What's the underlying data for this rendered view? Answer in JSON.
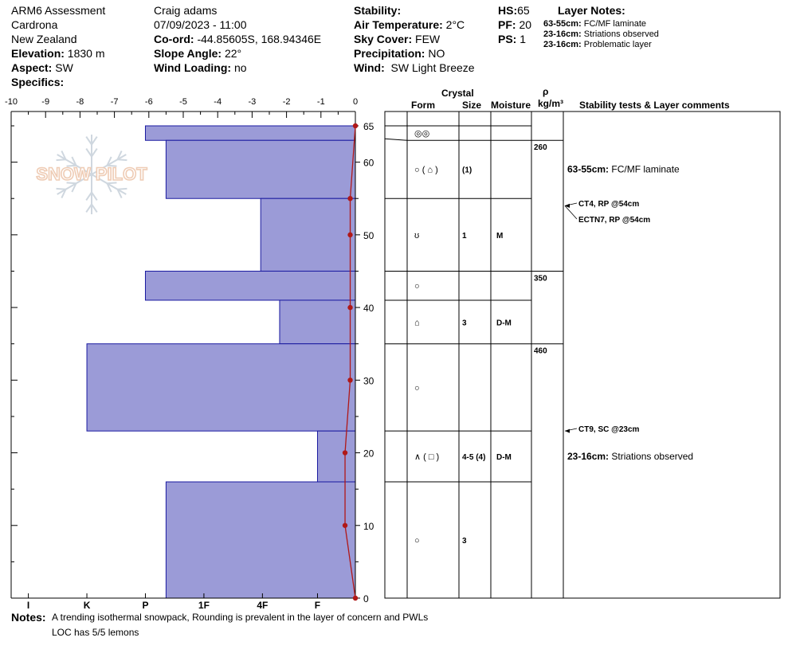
{
  "header": {
    "title": "ARM6 Assessment",
    "location": "Cardrona",
    "region": "New Zealand",
    "elevation_label": "Elevation:",
    "elevation": "1830 m",
    "aspect_label": "Aspect:",
    "aspect": "SW",
    "specifics_label": "Specifics:",
    "observer": "Craig adams",
    "datetime": "07/09/2023 - 11:00",
    "coord_label": "Co-ord:",
    "coord": "-44.85605S, 168.94346E",
    "slope_label": "Slope Angle:",
    "slope": "22°",
    "wind_loading_label": "Wind Loading:",
    "wind_loading": "no",
    "stability_label": "Stability:",
    "air_temp_label": "Air Temperature:",
    "air_temp": "2°C",
    "sky_label": "Sky Cover:",
    "sky": "FEW",
    "precip_label": "Precipitation:",
    "precip": "NO",
    "wind_label": "Wind:",
    "wind": "SW Light Breeze",
    "hs_label": "HS:",
    "hs": "65",
    "pf_label": "PF:",
    "pf": "20",
    "ps_label": "PS:",
    "ps": "1",
    "layer_notes_title": "Layer Notes:",
    "layer_notes": [
      {
        "range": "63-55cm:",
        "text": "FC/MF laminate"
      },
      {
        "range": "23-16cm:",
        "text": "Striations  observed"
      },
      {
        "range": "23-16cm:",
        "text": "Problematic layer"
      }
    ]
  },
  "watermark": "SNOW PILOT",
  "columns": {
    "crystal": "Crystal",
    "form": "Form",
    "size": "Size",
    "moisture": "Moisture",
    "rho": "ρ",
    "density_unit": "kg/m³",
    "stability": "Stability tests & Layer comments"
  },
  "chart_data": {
    "type": "bar",
    "xlabel": "",
    "ylabel": "",
    "x_ticks": [
      -10,
      -9,
      -8,
      -7,
      -6,
      -5,
      -4,
      -3,
      -2,
      -1,
      0
    ],
    "x_range": [
      -10,
      0
    ],
    "y_range": [
      0,
      65
    ],
    "y_ticks": [
      0,
      10,
      20,
      30,
      40,
      50,
      60,
      65
    ],
    "hardness_labels": [
      "I",
      "K",
      "P",
      "1F",
      "4F",
      "F"
    ],
    "hardness_positions": [
      -9.5,
      -7.8,
      -6.1,
      -4.4,
      -2.7,
      -1.1
    ],
    "hardness_layers": [
      {
        "top": 65,
        "bottom": 63,
        "hardness": "P"
      },
      {
        "top": 63,
        "bottom": 55,
        "hardness": "1F+"
      },
      {
        "top": 55,
        "bottom": 45,
        "hardness": "4F"
      },
      {
        "top": 45,
        "bottom": 41,
        "hardness": "P"
      },
      {
        "top": 41,
        "bottom": 35,
        "hardness": "4F-"
      },
      {
        "top": 35,
        "bottom": 23,
        "hardness": "K"
      },
      {
        "top": 23,
        "bottom": 16,
        "hardness": "F"
      },
      {
        "top": 16,
        "bottom": 0,
        "hardness": "1F+"
      }
    ],
    "hardness_values": [
      6.1,
      5.5,
      2.75,
      6.1,
      2.2,
      7.8,
      1.1,
      5.5
    ],
    "temperature_profile": [
      {
        "depth": 65,
        "temp": 0.0
      },
      {
        "depth": 55,
        "temp": -0.15
      },
      {
        "depth": 50,
        "temp": -0.15
      },
      {
        "depth": 40,
        "temp": -0.15
      },
      {
        "depth": 30,
        "temp": -0.15
      },
      {
        "depth": 20,
        "temp": -0.3
      },
      {
        "depth": 10,
        "temp": -0.3
      },
      {
        "depth": 0,
        "temp": 0.0
      }
    ]
  },
  "layers": [
    {
      "top": 65,
      "bottom": 63,
      "form": "◎◎",
      "size": "",
      "moisture": ""
    },
    {
      "top": 63,
      "bottom": 55,
      "form": "○ ( ⌂ )",
      "size": "(1)",
      "moisture": ""
    },
    {
      "top": 55,
      "bottom": 45,
      "form": "ʊ",
      "size": "1",
      "moisture": "M"
    },
    {
      "top": 45,
      "bottom": 41,
      "form": "○",
      "size": "",
      "moisture": ""
    },
    {
      "top": 41,
      "bottom": 35,
      "form": "⌂",
      "size": "3",
      "moisture": "D-M"
    },
    {
      "top": 35,
      "bottom": 23,
      "form": "○",
      "size": "",
      "moisture": ""
    },
    {
      "top": 23,
      "bottom": 16,
      "form": "∧ ( □ )",
      "size": "4-5 (4)",
      "moisture": "D-M"
    },
    {
      "top": 16,
      "bottom": 0,
      "form": "○",
      "size": "3",
      "moisture": ""
    }
  ],
  "densities": [
    {
      "depth": 63,
      "value": "260"
    },
    {
      "depth": 45,
      "value": "350"
    },
    {
      "depth": 35,
      "value": "460"
    }
  ],
  "stability_tests": [
    {
      "depth": 54,
      "label": "CT4, RP @54cm",
      "arrow": true
    },
    {
      "depth": 54,
      "label": "ECTN7, RP @54cm",
      "arrow": true
    },
    {
      "depth": 23,
      "label": "CT9, SC @23cm",
      "arrow": true
    }
  ],
  "layer_comments": [
    {
      "depth": 59,
      "range": "63-55cm:",
      "text": "FC/MF laminate"
    },
    {
      "depth": 19.5,
      "range": "23-16cm:",
      "text": "Striations  observed"
    }
  ],
  "notes_label": "Notes:",
  "notes": [
    "A trending isothermal snowpack, Rounding is prevalent in the layer of concern and PWLs",
    "LOC has 5/5 lemons"
  ]
}
